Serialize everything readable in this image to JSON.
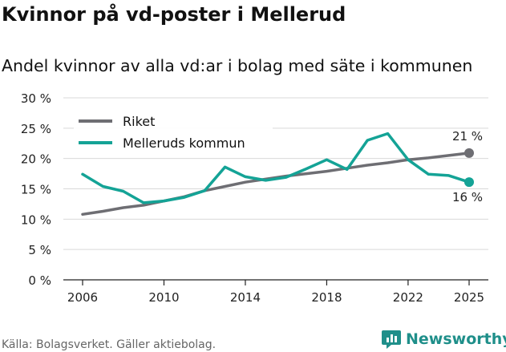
{
  "chart_data": {
    "type": "line",
    "title": "Kvinnor på vd-poster i Mellerud",
    "subtitle": "Andel kvinnor av alla vd:ar i bolag med säte i kommunen",
    "x": [
      2006,
      2007,
      2008,
      2009,
      2010,
      2011,
      2012,
      2013,
      2014,
      2015,
      2016,
      2017,
      2018,
      2019,
      2020,
      2021,
      2022,
      2023,
      2024,
      2025
    ],
    "x_ticks": [
      "2006",
      "2010",
      "2014",
      "2018",
      "2022",
      "2025"
    ],
    "y_ticks": [
      "0 %",
      "5 %",
      "10 %",
      "15 %",
      "20 %",
      "25 %",
      "30 %"
    ],
    "ylim": [
      0,
      30
    ],
    "series": [
      {
        "name": "Riket",
        "color": "#6e6e73",
        "values": [
          10.8,
          11.3,
          11.9,
          12.3,
          13.0,
          13.7,
          14.7,
          15.4,
          16.1,
          16.6,
          17.1,
          17.5,
          17.9,
          18.4,
          18.9,
          19.3,
          19.8,
          20.1,
          20.5,
          20.9
        ],
        "end_label": "21 %"
      },
      {
        "name": "Melleruds kommun",
        "color": "#14a396",
        "values": [
          17.4,
          15.4,
          14.6,
          12.7,
          13.0,
          13.6,
          14.7,
          18.6,
          17.0,
          16.4,
          16.9,
          18.3,
          19.8,
          18.2,
          23.0,
          24.1,
          19.8,
          17.4,
          17.2,
          16.1
        ],
        "end_label": "16 %"
      }
    ],
    "legend": "top-left",
    "grid": "horizontal"
  },
  "source": "Källa: Bolagsverket. Gäller aktiebolag.",
  "brand": "Newsworthy",
  "colors": {
    "brand": "#1f8f8a",
    "grid": "#d9d9d9",
    "axis": "#222222"
  }
}
